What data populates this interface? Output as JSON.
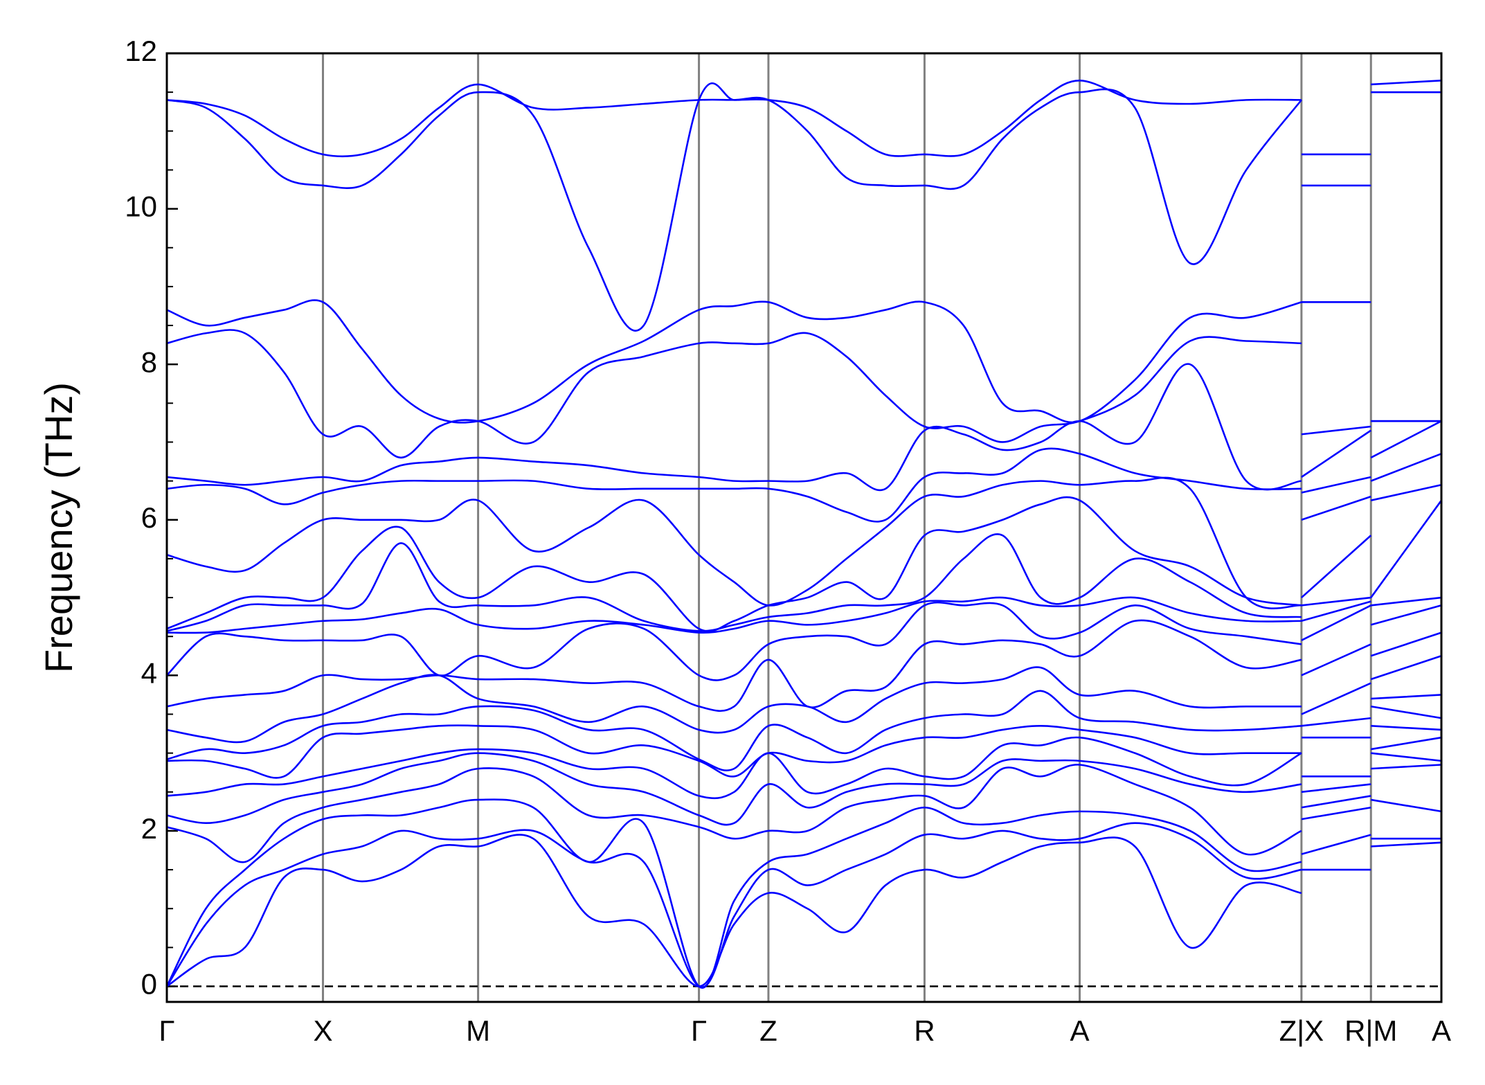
{
  "chart_data": {
    "type": "line",
    "y_label": "Frequency (THz)",
    "color": "#0000ff",
    "x": [
      0,
      41,
      82,
      123,
      164,
      205,
      246,
      286,
      327,
      385,
      443,
      501,
      559,
      596,
      632,
      673,
      714,
      755,
      796,
      837,
      878,
      918,
      959,
      1017,
      1075,
      1134,
      1192,
      1192,
      1192,
      1265,
      1265,
      1265,
      1339
    ],
    "xlim": [
      0,
      1339
    ],
    "xticks": [
      {
        "value": 0,
        "label": "Γ"
      },
      {
        "value": 164,
        "label": "X"
      },
      {
        "value": 327,
        "label": "M"
      },
      {
        "value": 559,
        "label": "Γ"
      },
      {
        "value": 632,
        "label": "Z"
      },
      {
        "value": 796,
        "label": "R"
      },
      {
        "value": 959,
        "label": "A"
      },
      {
        "value": 1192,
        "label": "Z|X"
      },
      {
        "value": 1265,
        "label": "R|M"
      },
      {
        "value": 1339,
        "label": "A"
      }
    ],
    "ylim": [
      -0.2,
      12
    ],
    "yticks": [
      0,
      2,
      4,
      6,
      8,
      10,
      12
    ],
    "bands": [
      [
        0,
        0.35,
        0.5,
        1.4,
        1.5,
        1.35,
        1.5,
        1.8,
        1.8,
        1.9,
        0.9,
        0.8,
        0,
        0.8,
        1.2,
        1.0,
        0.7,
        1.3,
        1.5,
        1.4,
        1.6,
        1.8,
        1.85,
        1.8,
        0.5,
        1.3,
        1.2,
        null,
        1.5,
        1.5,
        null,
        1.8,
        1.85
      ],
      [
        0,
        0.8,
        1.3,
        1.5,
        1.7,
        1.8,
        2.0,
        1.9,
        1.9,
        2.0,
        1.6,
        1.6,
        0,
        0.9,
        1.5,
        1.3,
        1.5,
        1.7,
        1.95,
        1.9,
        2.0,
        1.9,
        1.9,
        2.1,
        1.9,
        1.4,
        1.5,
        null,
        1.7,
        1.95,
        null,
        1.9,
        1.9
      ],
      [
        0,
        1.0,
        1.5,
        1.9,
        2.15,
        2.2,
        2.2,
        2.3,
        2.4,
        2.3,
        1.6,
        2.1,
        0,
        1.1,
        1.6,
        1.7,
        1.9,
        2.1,
        2.3,
        2.1,
        2.1,
        2.2,
        2.25,
        2.2,
        2.0,
        1.5,
        1.6,
        null,
        2.15,
        2.3,
        null,
        2.4,
        2.25
      ],
      [
        2.05,
        1.9,
        1.6,
        2.1,
        2.3,
        2.4,
        2.5,
        2.6,
        2.8,
        2.7,
        2.2,
        2.2,
        2.05,
        1.9,
        2.0,
        2.0,
        2.3,
        2.4,
        2.45,
        2.3,
        2.8,
        2.7,
        2.85,
        2.6,
        2.3,
        1.7,
        2.0,
        null,
        2.3,
        2.45,
        null,
        2.8,
        2.85
      ],
      [
        2.2,
        2.1,
        2.2,
        2.4,
        2.5,
        2.6,
        2.8,
        2.9,
        3.0,
        2.9,
        2.6,
        2.5,
        2.2,
        2.1,
        2.6,
        2.3,
        2.5,
        2.6,
        2.6,
        2.6,
        2.9,
        2.9,
        2.9,
        2.8,
        2.6,
        2.5,
        2.6,
        null,
        2.5,
        2.6,
        null,
        3.0,
        2.9
      ],
      [
        2.45,
        2.5,
        2.6,
        2.6,
        2.7,
        2.8,
        2.9,
        3.0,
        3.05,
        3.0,
        2.8,
        2.8,
        2.45,
        2.5,
        3.0,
        2.5,
        2.6,
        2.8,
        2.7,
        2.7,
        3.1,
        3.1,
        3.2,
        3.0,
        2.7,
        2.6,
        3.0,
        null,
        2.7,
        2.7,
        null,
        3.05,
        3.2
      ],
      [
        2.9,
        2.9,
        2.8,
        2.7,
        3.2,
        3.25,
        3.3,
        3.35,
        3.35,
        3.3,
        3.0,
        3.1,
        2.9,
        2.7,
        3.0,
        2.9,
        2.9,
        3.1,
        3.2,
        3.2,
        3.3,
        3.35,
        3.3,
        3.2,
        3.0,
        3.0,
        3.0,
        null,
        3.2,
        3.2,
        null,
        3.35,
        3.3
      ],
      [
        2.92,
        3.05,
        3.0,
        3.1,
        3.35,
        3.4,
        3.5,
        3.5,
        3.6,
        3.55,
        3.3,
        3.3,
        2.92,
        2.8,
        3.35,
        3.2,
        3.0,
        3.3,
        3.45,
        3.5,
        3.5,
        3.8,
        3.45,
        3.4,
        3.3,
        3.3,
        3.35,
        null,
        3.35,
        3.45,
        null,
        3.6,
        3.45
      ],
      [
        3.3,
        3.2,
        3.15,
        3.4,
        3.5,
        3.7,
        3.9,
        4.0,
        3.7,
        3.6,
        3.4,
        3.6,
        3.3,
        3.3,
        3.6,
        3.6,
        3.4,
        3.7,
        3.9,
        3.9,
        3.95,
        4.1,
        3.75,
        3.8,
        3.6,
        3.6,
        3.6,
        null,
        3.5,
        3.9,
        null,
        3.7,
        3.75
      ],
      [
        3.6,
        3.7,
        3.75,
        3.8,
        4.0,
        3.95,
        3.95,
        4.0,
        3.95,
        3.95,
        3.9,
        3.9,
        3.6,
        3.6,
        4.2,
        3.6,
        3.8,
        3.85,
        4.4,
        4.4,
        4.45,
        4.4,
        4.25,
        4.7,
        4.5,
        4.1,
        4.2,
        null,
        4.0,
        4.4,
        null,
        3.95,
        4.25
      ],
      [
        4.0,
        4.5,
        4.5,
        4.45,
        4.45,
        4.45,
        4.5,
        4.0,
        4.25,
        4.1,
        4.6,
        4.6,
        4.0,
        4.0,
        4.4,
        4.5,
        4.5,
        4.4,
        4.9,
        4.9,
        4.9,
        4.5,
        4.55,
        4.9,
        4.6,
        4.5,
        4.4,
        null,
        4.45,
        4.9,
        null,
        4.25,
        4.55
      ],
      [
        4.55,
        4.55,
        4.6,
        4.65,
        4.7,
        4.72,
        4.8,
        4.85,
        4.65,
        4.6,
        4.7,
        4.65,
        4.55,
        4.6,
        4.7,
        4.65,
        4.7,
        4.8,
        4.95,
        4.95,
        5.0,
        4.9,
        4.9,
        5.0,
        4.8,
        4.7,
        4.7,
        null,
        4.7,
        4.95,
        null,
        4.65,
        4.9
      ],
      [
        4.57,
        4.7,
        4.9,
        4.9,
        4.9,
        4.92,
        5.7,
        4.95,
        4.9,
        4.9,
        5.0,
        4.7,
        4.57,
        4.65,
        4.75,
        4.8,
        4.9,
        4.9,
        5.0,
        5.5,
        5.8,
        5.0,
        5.0,
        5.5,
        5.2,
        4.8,
        4.75,
        null,
        4.9,
        5.0,
        null,
        4.9,
        5.0
      ],
      [
        4.6,
        4.8,
        5.0,
        5.0,
        5.0,
        5.6,
        5.9,
        5.2,
        5.0,
        5.4,
        5.2,
        5.3,
        4.6,
        4.7,
        4.9,
        5.0,
        5.2,
        5.0,
        5.8,
        5.85,
        6.0,
        6.2,
        6.25,
        5.6,
        5.4,
        5.0,
        4.9,
        null,
        5.0,
        5.8,
        null,
        5.0,
        6.25
      ],
      [
        5.55,
        5.4,
        5.35,
        5.7,
        6.0,
        6.0,
        6.0,
        6.0,
        6.25,
        5.6,
        5.9,
        6.25,
        5.55,
        5.2,
        4.9,
        5.1,
        5.5,
        5.9,
        6.3,
        6.3,
        6.45,
        6.5,
        6.45,
        6.5,
        6.4,
        5.0,
        4.9,
        null,
        6.0,
        6.3,
        null,
        6.25,
        6.45
      ],
      [
        6.4,
        6.45,
        6.4,
        6.2,
        6.35,
        6.45,
        6.5,
        6.5,
        6.5,
        6.5,
        6.4,
        6.4,
        6.4,
        6.4,
        6.4,
        6.3,
        6.1,
        6.0,
        6.55,
        6.6,
        6.6,
        6.9,
        6.85,
        6.6,
        6.5,
        6.4,
        6.4,
        null,
        6.35,
        6.55,
        null,
        6.5,
        6.85
      ],
      [
        6.55,
        6.5,
        6.45,
        6.5,
        6.55,
        6.5,
        6.7,
        6.75,
        6.8,
        6.75,
        6.7,
        6.6,
        6.55,
        6.5,
        6.5,
        6.5,
        6.6,
        6.4,
        7.15,
        7.1,
        6.9,
        7.0,
        7.27,
        7.0,
        8.0,
        6.5,
        6.5,
        null,
        6.55,
        7.15,
        null,
        6.8,
        7.27
      ],
      [
        8.27,
        8.4,
        8.4,
        7.9,
        7.1,
        7.2,
        6.8,
        7.2,
        7.27,
        7.0,
        7.9,
        8.1,
        8.27,
        8.27,
        8.27,
        8.4,
        8.1,
        7.6,
        7.2,
        7.2,
        7.0,
        7.2,
        7.27,
        7.6,
        8.3,
        8.3,
        8.27,
        null,
        7.1,
        7.2,
        null,
        7.27,
        7.27
      ],
      [
        8.7,
        8.5,
        8.6,
        8.7,
        8.8,
        8.2,
        7.6,
        7.3,
        7.27,
        7.5,
        8.0,
        8.3,
        8.7,
        8.75,
        8.8,
        8.6,
        8.6,
        8.7,
        8.8,
        8.5,
        7.5,
        7.4,
        7.27,
        7.8,
        8.6,
        8.6,
        8.8,
        null,
        8.8,
        8.8,
        null,
        7.27,
        7.27
      ],
      [
        11.4,
        11.3,
        10.9,
        10.4,
        10.3,
        10.3,
        10.7,
        11.2,
        11.5,
        11.2,
        9.5,
        8.5,
        11.4,
        11.4,
        11.4,
        11.0,
        10.4,
        10.3,
        10.3,
        10.3,
        10.9,
        11.3,
        11.5,
        11.3,
        9.3,
        10.5,
        11.4,
        null,
        10.3,
        10.3,
        null,
        11.5,
        11.5
      ],
      [
        11.4,
        11.35,
        11.2,
        10.9,
        10.7,
        10.7,
        10.9,
        11.3,
        11.6,
        11.3,
        11.3,
        11.35,
        11.4,
        11.4,
        11.4,
        11.3,
        11.0,
        10.7,
        10.7,
        10.7,
        11.0,
        11.4,
        11.65,
        11.4,
        11.35,
        11.4,
        11.4,
        null,
        10.7,
        10.7,
        null,
        11.6,
        11.65
      ]
    ]
  }
}
